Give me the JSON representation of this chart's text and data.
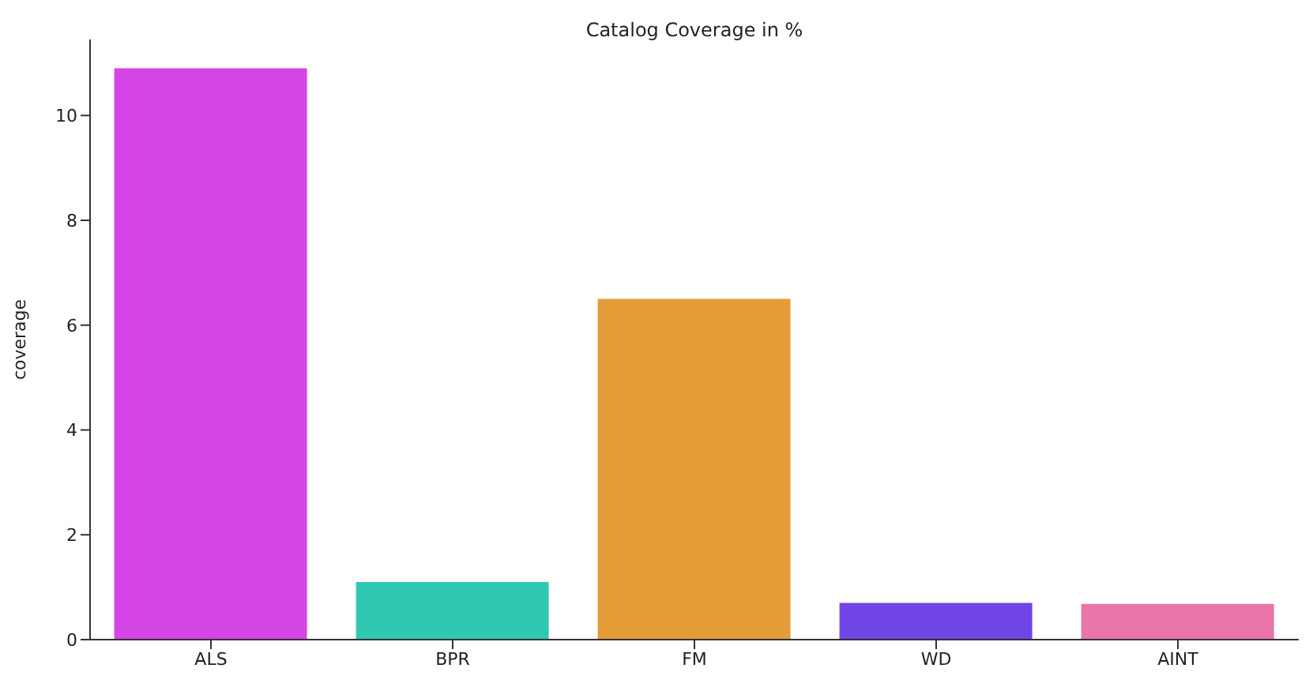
{
  "chart_data": {
    "type": "bar",
    "title": "Catalog Coverage in %",
    "ylabel": "coverage",
    "categories": [
      "ALS",
      "BPR",
      "FM",
      "WD",
      "AINT"
    ],
    "values": [
      10.9,
      1.1,
      6.5,
      0.7,
      0.68
    ],
    "colors": [
      "#d544e6",
      "#2ec9b0",
      "#e39c37",
      "#7045e6",
      "#e874a8"
    ],
    "ylim": [
      0,
      11.45
    ],
    "yticks": [
      0,
      2,
      4,
      6,
      8,
      10
    ],
    "grid": false,
    "legend": false
  }
}
